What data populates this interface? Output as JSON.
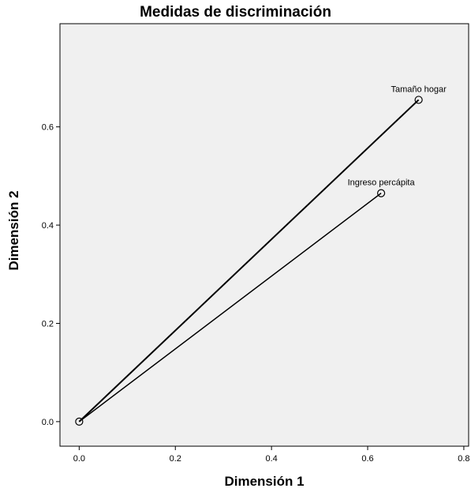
{
  "chart_data": {
    "type": "scatter",
    "title": "Medidas de discriminación",
    "xlabel": "Dimensión 1",
    "ylabel": "Dimensión 2",
    "xlim": [
      -0.04,
      0.81
    ],
    "ylim": [
      -0.05,
      0.81
    ],
    "x_ticks": [
      0.0,
      0.2,
      0.4,
      0.6,
      0.8
    ],
    "y_ticks": [
      0.0,
      0.2,
      0.4,
      0.6
    ],
    "x_tick_labels": [
      "0.0",
      "0.2",
      "0.4",
      "0.6",
      "0.8"
    ],
    "y_tick_labels": [
      "0.0",
      "0.2",
      "0.4",
      "0.6"
    ],
    "grid": false,
    "origin": {
      "x": 0.0,
      "y": 0.0
    },
    "points": [
      {
        "label": "Tamaño hogar",
        "x": 0.706,
        "y": 0.655
      },
      {
        "label": "Ingreso percápita",
        "x": 0.628,
        "y": 0.465
      }
    ],
    "vectors_from_origin": true,
    "colors": {
      "plot_background": "#f0f0f0",
      "line": "#000000",
      "marker": "#000000"
    }
  }
}
